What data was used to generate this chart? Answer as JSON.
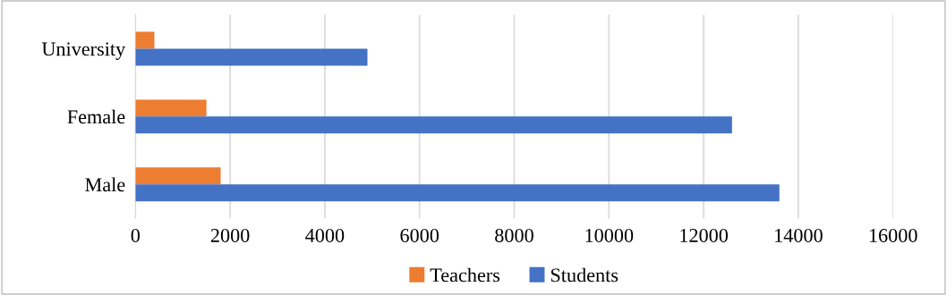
{
  "chart_data": {
    "type": "bar",
    "orientation": "horizontal",
    "categories": [
      "University",
      "Female",
      "Male"
    ],
    "series": [
      {
        "name": "Teachers",
        "color": "#ed7d31",
        "values": [
          400,
          1500,
          1800
        ]
      },
      {
        "name": "Students",
        "color": "#4472c4",
        "values": [
          4900,
          12600,
          13600
        ]
      }
    ],
    "xlim": [
      0,
      16000
    ],
    "xticks": [
      0,
      2000,
      4000,
      6000,
      8000,
      10000,
      12000,
      14000,
      16000
    ],
    "grid": "x",
    "legend": "bottom"
  }
}
